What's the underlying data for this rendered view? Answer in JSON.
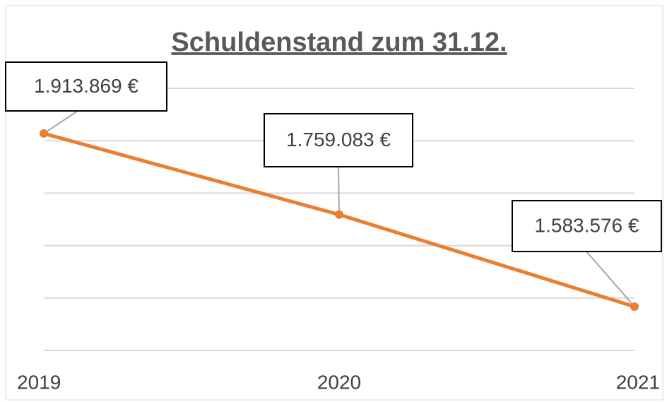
{
  "chart_data": {
    "type": "line",
    "title": "Schuldenstand zum 31.12.",
    "categories": [
      "2019",
      "2020",
      "2021"
    ],
    "series": [
      {
        "name": "Schuldenstand",
        "color": "#ed7d31",
        "values": [
          1913869,
          1759083,
          1583576
        ],
        "value_labels": [
          "1.913.869 €",
          "1.759.083 €",
          "1.583.576 €"
        ]
      }
    ],
    "ylim": [
      1500000,
      2000000
    ],
    "yticks": [
      1500000,
      1600000,
      1700000,
      1800000,
      1900000,
      2000000
    ],
    "grid": true
  }
}
